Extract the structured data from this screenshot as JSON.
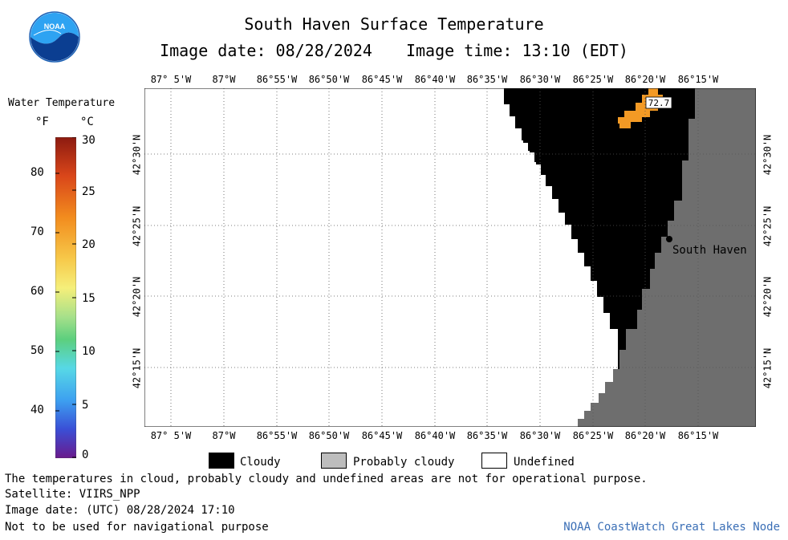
{
  "header": {
    "title": "South Haven Surface Temperature",
    "image_date_label": "Image date: 08/28/2024",
    "image_time_label": "Image time: 13:10 (EDT)"
  },
  "logo": {
    "text": "NOAA",
    "icon": "noaa-logo-icon"
  },
  "colorbar": {
    "title": "Water Temperature",
    "unit_f": "°F",
    "unit_c": "°C",
    "f_ticks": [
      "80",
      "70",
      "60",
      "50",
      "40"
    ],
    "c_ticks": [
      "30",
      "25",
      "20",
      "15",
      "10",
      "5",
      "0"
    ]
  },
  "map": {
    "lon_labels": [
      "87° 5'W",
      "87°W",
      "86°55'W",
      "86°50'W",
      "86°45'W",
      "86°40'W",
      "86°35'W",
      "86°30'W",
      "86°25'W",
      "86°20'W",
      "86°15'W"
    ],
    "lat_labels": [
      "42°30'N",
      "42°25'N",
      "42°20'N",
      "42°15'N"
    ],
    "place_label": "South Haven",
    "temp_annotation": "72.7",
    "colors": {
      "cloudy": "#000000",
      "land": "#6e6e6e",
      "undefined": "#ffffff",
      "warm_water": "#f39a25"
    }
  },
  "legend": {
    "cloudy": "Cloudy",
    "probably_cloudy": "Probably cloudy",
    "undefined": "Undefined",
    "colors": {
      "cloudy": "#000000",
      "probably_cloudy": "#bdbdbd",
      "undefined": "#ffffff"
    }
  },
  "footer": {
    "disclaimer": "The temperatures in cloud, probably cloudy and undefined areas are not for operational purpose.",
    "satellite": "Satellite: VIIRS_NPP",
    "utc_date": "Image date: (UTC) 08/28/2024  17:10",
    "nav_warning": "Not to be used for navigational purpose",
    "credit": "NOAA CoastWatch Great Lakes Node"
  }
}
